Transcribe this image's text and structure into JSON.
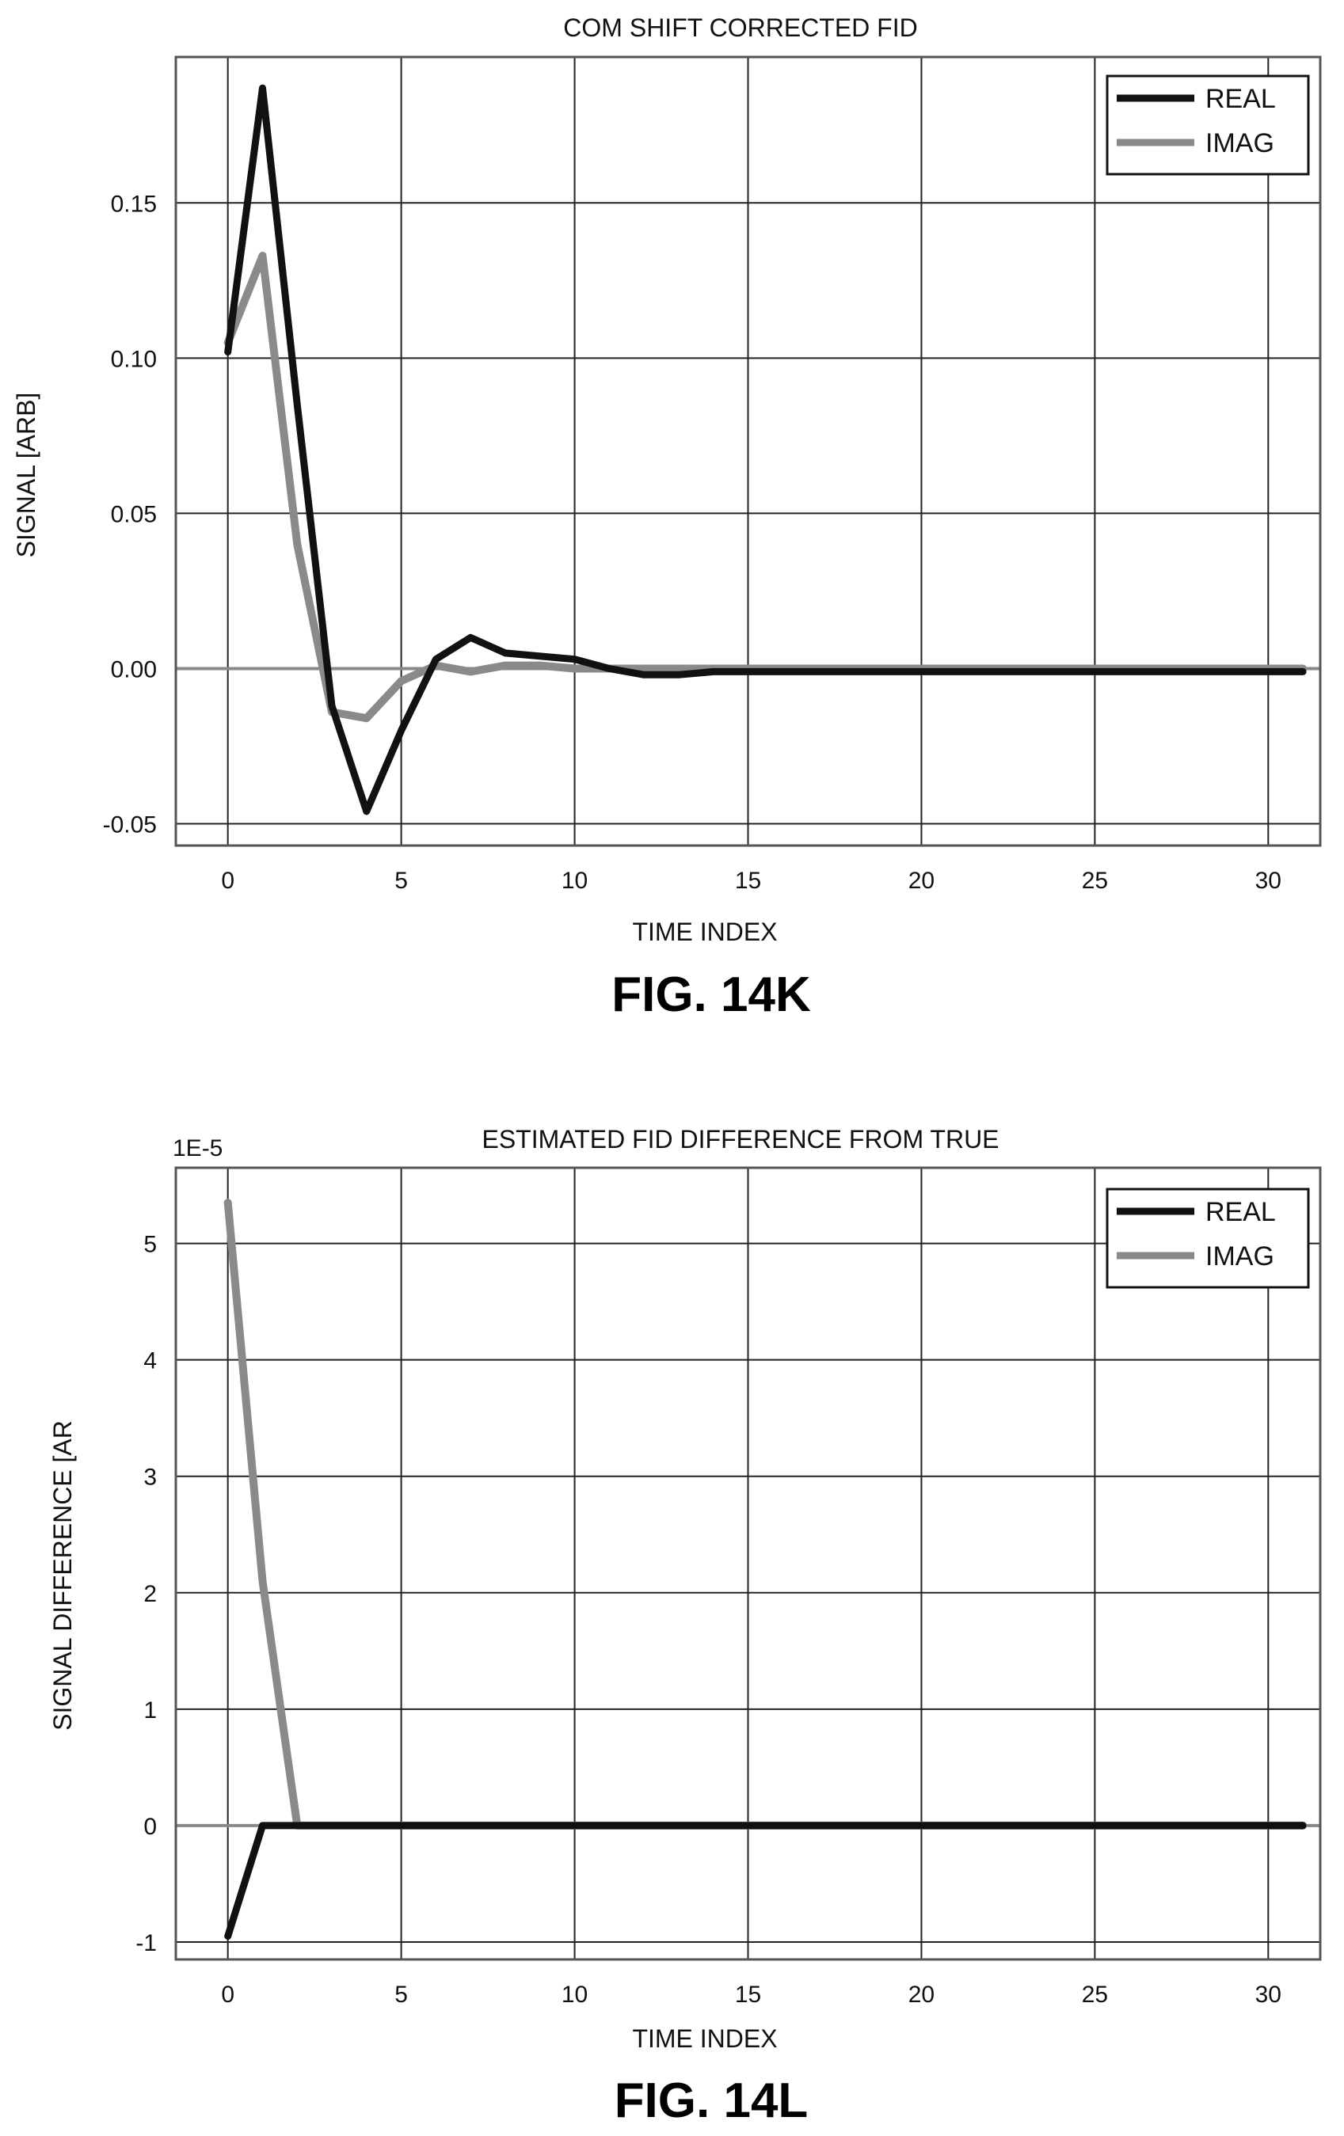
{
  "chart_data": [
    {
      "type": "line",
      "title": "COM SHIFT CORRECTED FID",
      "xlabel": "TIME INDEX",
      "ylabel": "SIGNAL [ARB]",
      "figure_label": "FIG. 14K",
      "xlim": [
        -1.5,
        31.5
      ],
      "ylim": [
        -0.057,
        0.197
      ],
      "x_ticks": [
        0,
        5,
        10,
        15,
        20,
        25,
        30
      ],
      "y_ticks": [
        -0.05,
        0.0,
        0.05,
        0.1,
        0.15
      ],
      "y_tick_labels": [
        "-0.05",
        "0.00",
        "0.05",
        "0.10",
        "0.15"
      ],
      "grid": true,
      "legend": "top-right",
      "x": [
        0,
        1,
        2,
        3,
        4,
        5,
        6,
        7,
        8,
        9,
        10,
        11,
        12,
        13,
        14,
        15,
        16,
        17,
        18,
        19,
        20,
        21,
        22,
        23,
        24,
        25,
        26,
        27,
        28,
        29,
        30,
        31
      ],
      "series": [
        {
          "name": "REAL",
          "color": "#111111",
          "values": [
            0.102,
            0.187,
            0.085,
            -0.012,
            -0.046,
            -0.02,
            0.003,
            0.01,
            0.005,
            0.004,
            0.003,
            0.0,
            -0.002,
            -0.002,
            -0.001,
            -0.001,
            -0.001,
            -0.001,
            -0.001,
            -0.001,
            -0.001,
            -0.001,
            -0.001,
            -0.001,
            -0.001,
            -0.001,
            -0.001,
            -0.001,
            -0.001,
            -0.001,
            -0.001,
            -0.001
          ]
        },
        {
          "name": "IMAG",
          "color": "#8a8a8a",
          "values": [
            0.105,
            0.133,
            0.04,
            -0.014,
            -0.016,
            -0.004,
            0.001,
            -0.001,
            0.001,
            0.001,
            0.0,
            0.0,
            0.0,
            0.0,
            0.0,
            0.0,
            0.0,
            0.0,
            0.0,
            0.0,
            0.0,
            0.0,
            0.0,
            0.0,
            0.0,
            0.0,
            0.0,
            0.0,
            0.0,
            0.0,
            0.0,
            0.0
          ]
        }
      ]
    },
    {
      "type": "line",
      "title": "ESTIMATED FID DIFFERENCE FROM TRUE",
      "xlabel": "TIME INDEX",
      "ylabel": "SIGNAL DIFFERENCE [AR",
      "figure_label": "FIG. 14L",
      "y_multiplier": "1E-5",
      "xlim": [
        -1.5,
        31.5
      ],
      "ylim": [
        -1.15,
        5.65
      ],
      "x_ticks": [
        0,
        5,
        10,
        15,
        20,
        25,
        30
      ],
      "y_ticks": [
        -1,
        0,
        1,
        2,
        3,
        4,
        5
      ],
      "y_tick_labels": [
        "-1",
        "0",
        "1",
        "2",
        "3",
        "4",
        "5"
      ],
      "grid": true,
      "legend": "top-right",
      "x": [
        0,
        1,
        2,
        3,
        4,
        5,
        6,
        7,
        8,
        9,
        10,
        11,
        12,
        13,
        14,
        15,
        16,
        17,
        18,
        19,
        20,
        21,
        22,
        23,
        24,
        25,
        26,
        27,
        28,
        29,
        30,
        31
      ],
      "series": [
        {
          "name": "REAL",
          "color": "#111111",
          "values": [
            -0.95,
            0.0,
            0.0,
            0.0,
            0.0,
            0.0,
            0.0,
            0.0,
            0.0,
            0.0,
            0.0,
            0.0,
            0.0,
            0.0,
            0.0,
            0.0,
            0.0,
            0.0,
            0.0,
            0.0,
            0.0,
            0.0,
            0.0,
            0.0,
            0.0,
            0.0,
            0.0,
            0.0,
            0.0,
            0.0,
            0.0,
            0.0
          ]
        },
        {
          "name": "IMAG",
          "color": "#8a8a8a",
          "values": [
            5.35,
            2.1,
            0.0,
            0.0,
            0.0,
            0.0,
            0.0,
            0.0,
            0.0,
            0.0,
            0.0,
            0.0,
            0.0,
            0.0,
            0.0,
            0.0,
            0.0,
            0.0,
            0.0,
            0.0,
            0.0,
            0.0,
            0.0,
            0.0,
            0.0,
            0.0,
            0.0,
            0.0,
            0.0,
            0.0,
            0.0,
            0.0
          ]
        }
      ]
    }
  ]
}
